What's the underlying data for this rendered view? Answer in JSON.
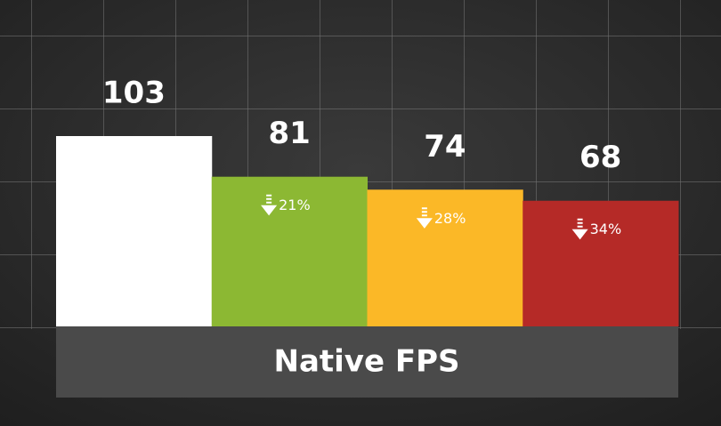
{
  "chart_data": {
    "type": "bar",
    "x_label": "Native FPS",
    "categories": [
      null,
      null,
      null,
      null
    ],
    "values": [
      103,
      81,
      74,
      68
    ],
    "colors": [
      "#ffffff",
      "#8cb833",
      "#fbb827",
      "#b52a27"
    ],
    "annotations": [
      null,
      "21%",
      "28%",
      "34%"
    ]
  }
}
